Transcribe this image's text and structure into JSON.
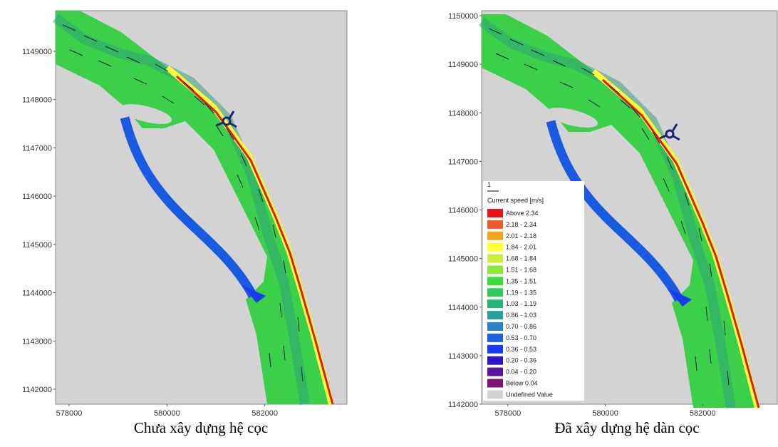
{
  "panels": [
    {
      "caption": "Chưa xây dựng hệ cọc",
      "xlim": [
        577723,
        583679
      ],
      "ylim": [
        1141690,
        1149842
      ],
      "xticks": [
        578000,
        580000,
        582000
      ],
      "yticks": [
        1142000,
        1143000,
        1144000,
        1145000,
        1146000,
        1147000,
        1148000,
        1149000
      ]
    },
    {
      "caption": "Đã xây dựng hệ dàn cọc",
      "xlim": [
        577460,
        583533
      ],
      "ylim": [
        1142000,
        1150103
      ],
      "xticks": [
        578000,
        580000,
        582000
      ],
      "yticks": [
        1142000,
        1143000,
        1144000,
        1145000,
        1146000,
        1147000,
        1148000,
        1149000,
        1150000
      ]
    }
  ],
  "legend": {
    "scale_label": "1",
    "title": "Current speed [m/s]",
    "entries": [
      {
        "label": "Above 2.34",
        "color": "#e8141c"
      },
      {
        "label": "2.18 - 2.34",
        "color": "#f05a28"
      },
      {
        "label": "2.01 - 2.18",
        "color": "#f7a21b"
      },
      {
        "label": "1.84 - 2.01",
        "color": "#ffff33"
      },
      {
        "label": "1.68 - 1.84",
        "color": "#c8f03c"
      },
      {
        "label": "1.51 - 1.68",
        "color": "#8ee83c"
      },
      {
        "label": "1.35 - 1.51",
        "color": "#3cdc3c"
      },
      {
        "label": "1.19 - 1.35",
        "color": "#32c85a"
      },
      {
        "label": "1.03 - 1.19",
        "color": "#28b478"
      },
      {
        "label": "0.86 - 1.03",
        "color": "#2aa09a"
      },
      {
        "label": "0.70 - 0.86",
        "color": "#2a82c8"
      },
      {
        "label": "0.53 - 0.70",
        "color": "#2060e0"
      },
      {
        "label": "0.36 - 0.53",
        "color": "#1a3cf0"
      },
      {
        "label": "0.20 - 0.36",
        "color": "#3214c8"
      },
      {
        "label": "0.04 - 0.20",
        "color": "#5a14a0"
      },
      {
        "label": "Below 0.04",
        "color": "#821478"
      },
      {
        "label": "Undefined Value",
        "color": "#d3d3d3"
      }
    ]
  }
}
